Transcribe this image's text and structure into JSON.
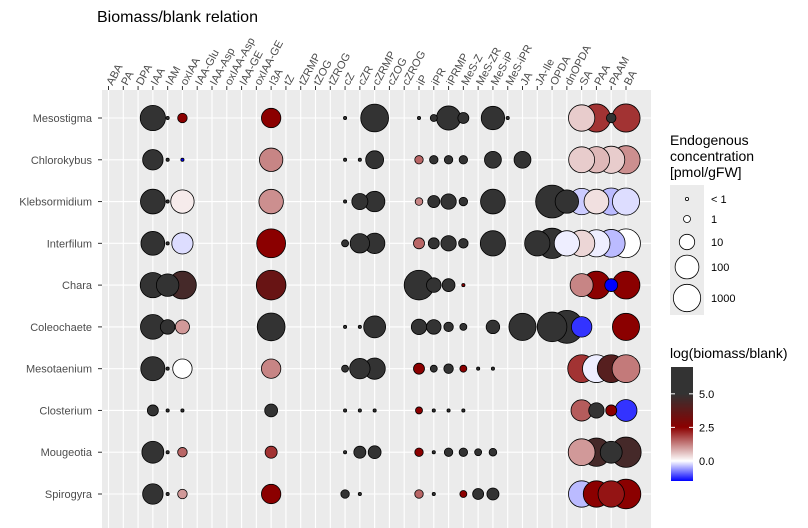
{
  "chart_data": {
    "type": "scatter",
    "title": "Biomass/blank relation",
    "xlabel": "",
    "ylabel": "",
    "categories": [
      "ABA",
      "PA",
      "DPA",
      "IAA",
      "IAM",
      "oxIAA",
      "IAA-Glu",
      "IAA-Asp",
      "oxIAA-Asp",
      "IAA-GE",
      "oxIAA-GE",
      "I3A",
      "tZ",
      "tZRMP",
      "tZOG",
      "tZROG",
      "cZ",
      "cZR",
      "cZRMP",
      "cZOG",
      "cZROG",
      "iP",
      "iPR",
      "iPRMP",
      "MeS-Z",
      "MeS-ZR",
      "MeS-iP",
      "MeS-iPR",
      "JA",
      "JA-Ile",
      "OPDA",
      "dnOPDA",
      "SA",
      "PAA",
      "PAAM",
      "BA"
    ],
    "rows": [
      "Mesostigma",
      "Chlorokybus",
      "Klebsormidium",
      "Interfilum",
      "Chara",
      "Coleochaete",
      "Mesotaenium",
      "Closterium",
      "Mougeotia",
      "Spirogyra"
    ],
    "size_legend": {
      "title": [
        "Endogenous",
        "concentration",
        "[pmol/gFW]"
      ],
      "labels": [
        "< 1",
        "1",
        "10",
        "100",
        "1000"
      ],
      "values": [
        0.1,
        1,
        10,
        100,
        1000
      ]
    },
    "color_legend": {
      "title": "log(biomass/blank)",
      "ticks": [
        0.0,
        2.5,
        5.0
      ],
      "tick_labels": [
        "0.0",
        "2.5",
        "5.0"
      ],
      "range": [
        -1.5,
        7
      ],
      "colors": {
        "low": "#0000ff",
        "mid": "#ffffff",
        "mid2": "#8b0000",
        "high": "#333333"
      }
    },
    "points": [
      {
        "row": "Mesostigma",
        "col": "IAA",
        "conc": 150,
        "log": 7
      },
      {
        "row": "Mesostigma",
        "col": "IAM",
        "conc": 0.2,
        "log": 6
      },
      {
        "row": "Mesostigma",
        "col": "oxIAA",
        "conc": 2,
        "log": 2.5
      },
      {
        "row": "Mesostigma",
        "col": "I3A",
        "conc": 30,
        "log": 2.5
      },
      {
        "row": "Mesostigma",
        "col": "cZ",
        "conc": 0.5,
        "log": 6
      },
      {
        "row": "Mesostigma",
        "col": "cZRMP",
        "conc": 300,
        "log": 7
      },
      {
        "row": "Mesostigma",
        "col": "iP",
        "conc": 0.4,
        "log": 6
      },
      {
        "row": "Mesostigma",
        "col": "iPR",
        "conc": 1,
        "log": 6
      },
      {
        "row": "Mesostigma",
        "col": "iPRMP",
        "conc": 110,
        "log": 7
      },
      {
        "row": "Mesostigma",
        "col": "MeS-Z",
        "conc": 3,
        "log": 6
      },
      {
        "row": "Mesostigma",
        "col": "MeS-iP",
        "conc": 90,
        "log": 7
      },
      {
        "row": "Mesostigma",
        "col": "MeS-iPR",
        "conc": 0.5,
        "log": 6
      },
      {
        "row": "Mesostigma",
        "col": "SA",
        "conc": 200,
        "log": 0.5
      },
      {
        "row": "Mesostigma",
        "col": "PAA",
        "conc": 330,
        "log": 2
      },
      {
        "row": "Mesostigma",
        "col": "PAAM",
        "conc": 2,
        "log": 6
      },
      {
        "row": "Mesostigma",
        "col": "BA",
        "conc": 330,
        "log": 2
      },
      {
        "row": "Chlorokybus",
        "col": "IAA",
        "conc": 40,
        "log": 7
      },
      {
        "row": "Chlorokybus",
        "col": "IAM",
        "conc": 0.2,
        "log": 6
      },
      {
        "row": "Chlorokybus",
        "col": "oxIAA",
        "conc": 0.8,
        "log": -1.5
      },
      {
        "row": "Chlorokybus",
        "col": "I3A",
        "conc": 90,
        "log": 1.2
      },
      {
        "row": "Chlorokybus",
        "col": "cZ",
        "conc": 0.1,
        "log": 6
      },
      {
        "row": "Chlorokybus",
        "col": "cZR",
        "conc": 0.3,
        "log": 6
      },
      {
        "row": "Chlorokybus",
        "col": "cZRMP",
        "conc": 20,
        "log": 7
      },
      {
        "row": "Chlorokybus",
        "col": "iP",
        "conc": 1.5,
        "log": 1.5
      },
      {
        "row": "Chlorokybus",
        "col": "iPR",
        "conc": 1.5,
        "log": 6
      },
      {
        "row": "Chlorokybus",
        "col": "iPRMP",
        "conc": 1.5,
        "log": 6
      },
      {
        "row": "Chlorokybus",
        "col": "MeS-Z",
        "conc": 1.5,
        "log": 6
      },
      {
        "row": "Chlorokybus",
        "col": "MeS-iP",
        "conc": 15,
        "log": 7
      },
      {
        "row": "Chlorokybus",
        "col": "JA",
        "conc": 15,
        "log": 7
      },
      {
        "row": "Chlorokybus",
        "col": "SA",
        "conc": 180,
        "log": 0.5
      },
      {
        "row": "Chlorokybus",
        "col": "PAA",
        "conc": 200,
        "log": 0.7
      },
      {
        "row": "Chlorokybus",
        "col": "PAAM",
        "conc": 250,
        "log": 0.5
      },
      {
        "row": "Chlorokybus",
        "col": "BA",
        "conc": 330,
        "log": 1.1
      },
      {
        "row": "Klebsormidium",
        "col": "IAA",
        "conc": 130,
        "log": 7
      },
      {
        "row": "Klebsormidium",
        "col": "IAM",
        "conc": 0.2,
        "log": 6
      },
      {
        "row": "Klebsormidium",
        "col": "oxIAA",
        "conc": 90,
        "log": 0.2
      },
      {
        "row": "Klebsormidium",
        "col": "I3A",
        "conc": 120,
        "log": 1.1
      },
      {
        "row": "Klebsormidium",
        "col": "cZ",
        "conc": 0.3,
        "log": 6
      },
      {
        "row": "Klebsormidium",
        "col": "cZR",
        "conc": 12,
        "log": 7
      },
      {
        "row": "Klebsormidium",
        "col": "cZRMP",
        "conc": 40,
        "log": 7
      },
      {
        "row": "Klebsormidium",
        "col": "iP",
        "conc": 1.2,
        "log": 1.2
      },
      {
        "row": "Klebsormidium",
        "col": "iPR",
        "conc": 4,
        "log": 6
      },
      {
        "row": "Klebsormidium",
        "col": "iPRMP",
        "conc": 10,
        "log": 7
      },
      {
        "row": "Klebsormidium",
        "col": "MeS-Z",
        "conc": 1.5,
        "log": 6
      },
      {
        "row": "Klebsormidium",
        "col": "MeS-iP",
        "conc": 130,
        "log": 7
      },
      {
        "row": "Klebsormidium",
        "col": "OPDA",
        "conc": 1200,
        "log": 7
      },
      {
        "row": "Klebsormidium",
        "col": "dnOPDA",
        "conc": 90,
        "log": 7
      },
      {
        "row": "Klebsormidium",
        "col": "SA",
        "conc": 200,
        "log": -0.3
      },
      {
        "row": "Klebsormidium",
        "col": "PAA",
        "conc": 130,
        "log": 0.3
      },
      {
        "row": "Klebsormidium",
        "col": "PAAM",
        "conc": 250,
        "log": -0.4
      },
      {
        "row": "Klebsormidium",
        "col": "BA",
        "conc": 250,
        "log": -0.2
      },
      {
        "row": "Interfilum",
        "col": "IAA",
        "conc": 100,
        "log": 7
      },
      {
        "row": "Interfilum",
        "col": "IAM",
        "conc": 0.2,
        "log": 6
      },
      {
        "row": "Interfilum",
        "col": "oxIAA",
        "conc": 50,
        "log": -0.2
      },
      {
        "row": "Interfilum",
        "col": "I3A",
        "conc": 400,
        "log": 2.5
      },
      {
        "row": "Interfilum",
        "col": "cZ",
        "conc": 1,
        "log": 6
      },
      {
        "row": "Interfilum",
        "col": "cZR",
        "conc": 30,
        "log": 7
      },
      {
        "row": "Interfilum",
        "col": "cZRMP",
        "conc": 40,
        "log": 7
      },
      {
        "row": "Interfilum",
        "col": "iP",
        "conc": 3,
        "log": 1.5
      },
      {
        "row": "Interfilum",
        "col": "iPR",
        "conc": 3,
        "log": 6
      },
      {
        "row": "Interfilum",
        "col": "iPRMP",
        "conc": 10,
        "log": 7
      },
      {
        "row": "Interfilum",
        "col": "MeS-Z",
        "conc": 2,
        "log": 6
      },
      {
        "row": "Interfilum",
        "col": "MeS-iP",
        "conc": 150,
        "log": 7
      },
      {
        "row": "Interfilum",
        "col": "JA-Ile",
        "conc": 150,
        "log": 7
      },
      {
        "row": "Interfilum",
        "col": "OPDA",
        "conc": 600,
        "log": 7
      },
      {
        "row": "Interfilum",
        "col": "dnOPDA",
        "conc": 150,
        "log": -0.1
      },
      {
        "row": "Interfilum",
        "col": "SA",
        "conc": 200,
        "log": 0.4
      },
      {
        "row": "Interfilum",
        "col": "PAA",
        "conc": 250,
        "log": -0.1
      },
      {
        "row": "Interfilum",
        "col": "PAAM",
        "conc": 300,
        "log": -0.4
      },
      {
        "row": "Interfilum",
        "col": "BA",
        "conc": 400,
        "log": 0.0
      },
      {
        "row": "Chara",
        "col": "IAA",
        "conc": 150,
        "log": 7
      },
      {
        "row": "Chara",
        "col": "IAM",
        "conc": 70,
        "log": 7
      },
      {
        "row": "Chara",
        "col": "oxIAA",
        "conc": 300,
        "log": 4.5
      },
      {
        "row": "Chara",
        "col": "I3A",
        "conc": 500,
        "log": 3.5
      },
      {
        "row": "Chara",
        "col": "iP",
        "conc": 500,
        "log": 7
      },
      {
        "row": "Chara",
        "col": "iPR",
        "conc": 8,
        "log": 7
      },
      {
        "row": "Chara",
        "col": "iPRMP",
        "conc": 5,
        "log": 6
      },
      {
        "row": "Chara",
        "col": "MeS-Z",
        "conc": 0.6,
        "log": 2.5
      },
      {
        "row": "Chara",
        "col": "SA",
        "conc": 80,
        "log": 1.2
      },
      {
        "row": "Chara",
        "col": "PAA",
        "conc": 300,
        "log": 2.5
      },
      {
        "row": "Chara",
        "col": "PAAM",
        "conc": 5,
        "log": -1.5
      },
      {
        "row": "Chara",
        "col": "BA",
        "conc": 300,
        "log": 2.5
      },
      {
        "row": "Coleochaete",
        "col": "IAA",
        "conc": 130,
        "log": 7
      },
      {
        "row": "Coleochaete",
        "col": "IAM",
        "conc": 8,
        "log": 7
      },
      {
        "row": "Coleochaete",
        "col": "oxIAA",
        "conc": 7,
        "log": 1
      },
      {
        "row": "Coleochaete",
        "col": "I3A",
        "conc": 300,
        "log": 7
      },
      {
        "row": "Coleochaete",
        "col": "cZ",
        "conc": 0.1,
        "log": 6
      },
      {
        "row": "Coleochaete",
        "col": "cZR",
        "conc": 0.3,
        "log": 6
      },
      {
        "row": "Coleochaete",
        "col": "cZRMP",
        "conc": 60,
        "log": 7
      },
      {
        "row": "Coleochaete",
        "col": "iP",
        "conc": 10,
        "log": 7
      },
      {
        "row": "Coleochaete",
        "col": "iPR",
        "conc": 8,
        "log": 7
      },
      {
        "row": "Coleochaete",
        "col": "iPRMP",
        "conc": 2,
        "log": 6
      },
      {
        "row": "Coleochaete",
        "col": "MeS-Z",
        "conc": 1,
        "log": 6
      },
      {
        "row": "Coleochaete",
        "col": "MeS-iP",
        "conc": 6,
        "log": 7
      },
      {
        "row": "Coleochaete",
        "col": "JA",
        "conc": 250,
        "log": 7
      },
      {
        "row": "Coleochaete",
        "col": "OPDA",
        "conc": 500,
        "log": 7
      },
      {
        "row": "Coleochaete",
        "col": "dnOPDA",
        "conc": 1200,
        "log": 7
      },
      {
        "row": "Coleochaete",
        "col": "SA",
        "conc": 40,
        "log": -1.2
      },
      {
        "row": "Coleochaete",
        "col": "BA",
        "conc": 250,
        "log": 2.5
      },
      {
        "row": "Mesotaenium",
        "col": "IAA",
        "conc": 110,
        "log": 7
      },
      {
        "row": "Mesotaenium",
        "col": "IAM",
        "conc": 0.2,
        "log": 6
      },
      {
        "row": "Mesotaenium",
        "col": "oxIAA",
        "conc": 30,
        "log": 0
      },
      {
        "row": "Mesotaenium",
        "col": "I3A",
        "conc": 30,
        "log": 1.2
      },
      {
        "row": "Mesotaenium",
        "col": "cZ",
        "conc": 1,
        "log": 6
      },
      {
        "row": "Mesotaenium",
        "col": "cZR",
        "conc": 40,
        "log": 7
      },
      {
        "row": "Mesotaenium",
        "col": "cZRMP",
        "conc": 50,
        "log": 7
      },
      {
        "row": "Mesotaenium",
        "col": "iP",
        "conc": 3,
        "log": 2.5
      },
      {
        "row": "Mesotaenium",
        "col": "iPR",
        "conc": 1,
        "log": 6
      },
      {
        "row": "Mesotaenium",
        "col": "iPRMP",
        "conc": 2,
        "log": 6
      },
      {
        "row": "Mesotaenium",
        "col": "MeS-Z",
        "conc": 1,
        "log": 2.5
      },
      {
        "row": "Mesotaenium",
        "col": "MeS-ZR",
        "conc": 0.4,
        "log": 6
      },
      {
        "row": "Mesotaenium",
        "col": "MeS-iP",
        "conc": 0.2,
        "log": 6
      },
      {
        "row": "Mesotaenium",
        "col": "SA",
        "conc": 300,
        "log": 2
      },
      {
        "row": "Mesotaenium",
        "col": "PAA",
        "conc": 300,
        "log": -0.1
      },
      {
        "row": "Mesotaenium",
        "col": "PAAM",
        "conc": 300,
        "log": 4
      },
      {
        "row": "Mesotaenium",
        "col": "BA",
        "conc": 300,
        "log": 1.3
      },
      {
        "row": "Closterium",
        "col": "IAA",
        "conc": 3,
        "log": 7
      },
      {
        "row": "Closterium",
        "col": "IAM",
        "conc": 0.2,
        "log": 6
      },
      {
        "row": "Closterium",
        "col": "oxIAA",
        "conc": 0.5,
        "log": 6
      },
      {
        "row": "Closterium",
        "col": "I3A",
        "conc": 5,
        "log": 7
      },
      {
        "row": "Closterium",
        "col": "cZ",
        "conc": 0.3,
        "log": 6
      },
      {
        "row": "Closterium",
        "col": "cZR",
        "conc": 0.2,
        "log": 6
      },
      {
        "row": "Closterium",
        "col": "cZRMP",
        "conc": 0.3,
        "log": 6
      },
      {
        "row": "Closterium",
        "col": "iP",
        "conc": 1,
        "log": 2.5
      },
      {
        "row": "Closterium",
        "col": "iPR",
        "conc": 0.8,
        "log": 6
      },
      {
        "row": "Closterium",
        "col": "iPRMP",
        "conc": 0.8,
        "log": 6
      },
      {
        "row": "Closterium",
        "col": "MeS-Z",
        "conc": 0.8,
        "log": 6
      },
      {
        "row": "Closterium",
        "col": "SA",
        "conc": 50,
        "log": 1.6
      },
      {
        "row": "Closterium",
        "col": "PAA",
        "conc": 10,
        "log": 7
      },
      {
        "row": "Closterium",
        "col": "PAAM",
        "conc": 3,
        "log": 2.5
      },
      {
        "row": "Closterium",
        "col": "BA",
        "conc": 60,
        "log": -1.2
      },
      {
        "row": "Mougeotia",
        "col": "IAA",
        "conc": 60,
        "log": 7
      },
      {
        "row": "Mougeotia",
        "col": "IAM",
        "conc": 0.2,
        "log": 6
      },
      {
        "row": "Mougeotia",
        "col": "oxIAA",
        "conc": 2,
        "log": 1.5
      },
      {
        "row": "Mougeotia",
        "col": "I3A",
        "conc": 4,
        "log": 2
      },
      {
        "row": "Mougeotia",
        "col": "cZ",
        "conc": 0.8,
        "log": 6
      },
      {
        "row": "Mougeotia",
        "col": "cZR",
        "conc": 4,
        "log": 7
      },
      {
        "row": "Mougeotia",
        "col": "cZRMP",
        "conc": 5,
        "log": 7
      },
      {
        "row": "Mougeotia",
        "col": "iP",
        "conc": 1.5,
        "log": 2.5
      },
      {
        "row": "Mougeotia",
        "col": "iPR",
        "conc": 0.4,
        "log": 6
      },
      {
        "row": "Mougeotia",
        "col": "iPRMP",
        "conc": 1.5,
        "log": 6
      },
      {
        "row": "Mougeotia",
        "col": "MeS-Z",
        "conc": 1.5,
        "log": 6
      },
      {
        "row": "Mougeotia",
        "col": "MeS-ZR",
        "conc": 1,
        "log": 6
      },
      {
        "row": "Mougeotia",
        "col": "MeS-iP",
        "conc": 1.2,
        "log": 6
      },
      {
        "row": "Mougeotia",
        "col": "SA",
        "conc": 230,
        "log": 1
      },
      {
        "row": "Mougeotia",
        "col": "PAA",
        "conc": 350,
        "log": 4.5
      },
      {
        "row": "Mougeotia",
        "col": "PAAM",
        "conc": 60,
        "log": 5
      },
      {
        "row": "Mougeotia",
        "col": "BA",
        "conc": 600,
        "log": 4.5
      },
      {
        "row": "Spirogyra",
        "col": "IAA",
        "conc": 40,
        "log": 7
      },
      {
        "row": "Spirogyra",
        "col": "IAM",
        "conc": 0.2,
        "log": 6
      },
      {
        "row": "Spirogyra",
        "col": "oxIAA",
        "conc": 2,
        "log": 1
      },
      {
        "row": "Spirogyra",
        "col": "I3A",
        "conc": 30,
        "log": 2.5
      },
      {
        "row": "Spirogyra",
        "col": "cZ",
        "conc": 1.5,
        "log": 6
      },
      {
        "row": "Spirogyra",
        "col": "cZR",
        "conc": 0.2,
        "log": 6
      },
      {
        "row": "Spirogyra",
        "col": "iP",
        "conc": 1.5,
        "log": 1.5
      },
      {
        "row": "Spirogyra",
        "col": "iPR",
        "conc": 0.8,
        "log": 6
      },
      {
        "row": "Spirogyra",
        "col": "MeS-Z",
        "conc": 1,
        "log": 2.5
      },
      {
        "row": "Spirogyra",
        "col": "MeS-ZR",
        "conc": 3,
        "log": 6
      },
      {
        "row": "Spirogyra",
        "col": "MeS-iP",
        "conc": 4,
        "log": 6
      },
      {
        "row": "Spirogyra",
        "col": "SA",
        "conc": 200,
        "log": -0.4
      },
      {
        "row": "Spirogyra",
        "col": "PAA",
        "conc": 200,
        "log": 2.5
      },
      {
        "row": "Spirogyra",
        "col": "PAAM",
        "conc": 200,
        "log": 2.3
      },
      {
        "row": "Spirogyra",
        "col": "BA",
        "conc": 500,
        "log": 2.5
      }
    ]
  }
}
